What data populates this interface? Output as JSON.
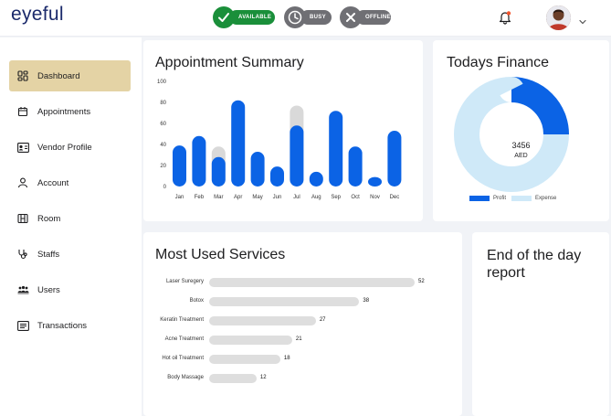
{
  "app": {
    "logo_text": "eyeful"
  },
  "status_toggles": [
    {
      "label": "AVAILABLE",
      "icon": "check-icon",
      "color": "#1a8f3a"
    },
    {
      "label": "BUSY",
      "icon": "clock-icon",
      "color": "#6f6f74"
    },
    {
      "label": "OFFLINE",
      "icon": "x-icon",
      "color": "#6f6f74"
    }
  ],
  "header": {
    "notification_icon": "bell-icon",
    "notification_dot_color": "#f2542d"
  },
  "sidebar": {
    "items": [
      {
        "label": "Dashboard",
        "icon": "dashboard-icon",
        "active": true
      },
      {
        "label": "Appointments",
        "icon": "calendar-icon"
      },
      {
        "label": "Vendor Profile",
        "icon": "id-card-icon"
      },
      {
        "label": "Account",
        "icon": "user-icon"
      },
      {
        "label": "Room",
        "icon": "room-icon"
      },
      {
        "label": "Staffs",
        "icon": "stethoscope-icon"
      },
      {
        "label": "Users",
        "icon": "users-icon"
      },
      {
        "label": "Transactions",
        "icon": "receipt-icon"
      }
    ]
  },
  "appointment_summary": {
    "title": "Appointment Summary"
  },
  "todays_finance": {
    "title": "Todays Finance",
    "center_value": "3456",
    "center_unit": "AED",
    "legend": [
      {
        "label": "Profit",
        "color": "#0b63e5"
      },
      {
        "label": "Expense",
        "color": "#cfe9f8"
      }
    ]
  },
  "most_used_services": {
    "title": "Most Used Services"
  },
  "end_of_day_report": {
    "title": "End of the day report"
  },
  "chart_data": [
    {
      "type": "bar",
      "title": "Appointment Summary",
      "categories": [
        "Jan",
        "Feb",
        "Mar",
        "Apr",
        "May",
        "Jun",
        "Jul",
        "Aug",
        "Sep",
        "Oct",
        "Nov",
        "Dec"
      ],
      "series": [
        {
          "values": [
            39,
            48,
            28,
            82,
            33,
            19,
            58,
            14,
            72,
            38,
            9,
            53
          ],
          "color": "#0b63e5"
        },
        {
          "values": [
            0,
            0,
            38,
            0,
            0,
            0,
            77,
            0,
            0,
            0,
            0,
            0
          ],
          "color": "#d9d9d9"
        }
      ],
      "yticks": [
        0,
        20,
        40,
        60,
        80,
        100
      ],
      "ylim": [
        0,
        100
      ],
      "grid": false
    },
    {
      "type": "pie",
      "title": "Todays Finance",
      "labels": [
        "Profit",
        "Expense"
      ],
      "values": [
        25,
        75
      ],
      "colors": [
        "#0b63e5",
        "#cfe9f8"
      ],
      "donut": true
    },
    {
      "type": "bar",
      "orientation": "horizontal",
      "title": "Most Used Services",
      "categories": [
        "Laser Suregery",
        "Botox",
        "Keratin Treatment",
        "Acne Treatment",
        "Hot oil Treatment",
        "Body Massage"
      ],
      "values": [
        52,
        38,
        27,
        21,
        18,
        12
      ],
      "color": "#dedede"
    }
  ]
}
